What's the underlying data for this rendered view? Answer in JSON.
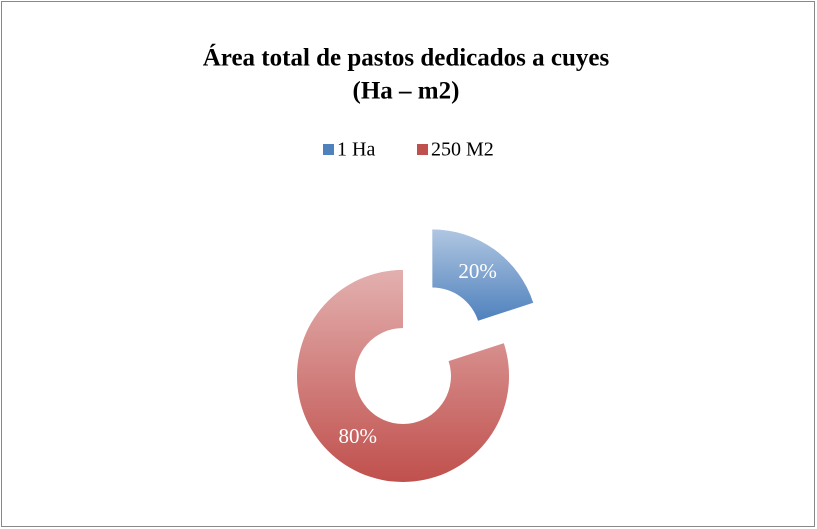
{
  "chart_data": {
    "type": "donut",
    "title": [
      "Área total de pastos dedicados a cuyes",
      "(Ha – m2)"
    ],
    "categories": [
      "1 Ha",
      "250 M2"
    ],
    "values": [
      20,
      80
    ],
    "value_labels": [
      "20%",
      "80%"
    ],
    "colors": [
      "#4f81bd",
      "#c0504d"
    ],
    "legend": "top"
  }
}
